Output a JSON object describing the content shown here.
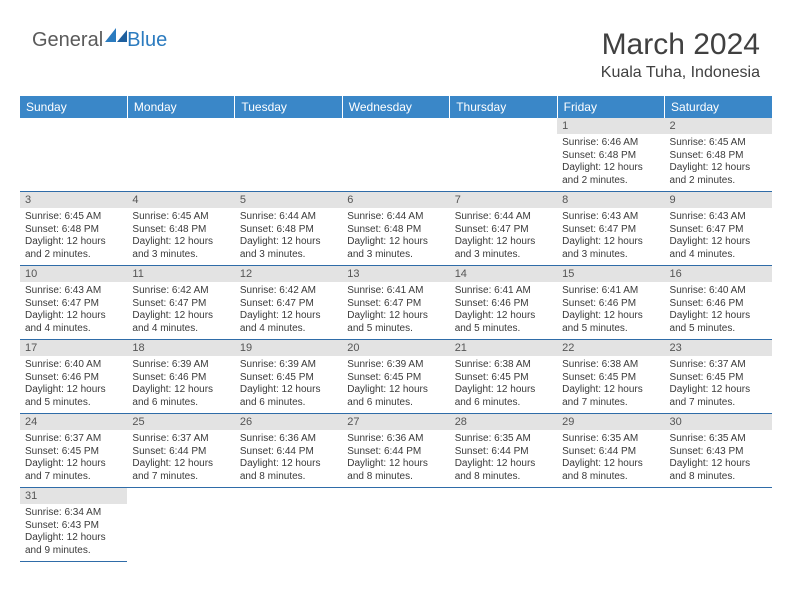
{
  "brand": {
    "part1": "General",
    "part2": "Blue"
  },
  "title": "March 2024",
  "location": "Kuala Tuha, Indonesia",
  "colors": {
    "header_bg": "#3a87c8",
    "header_text": "#ffffff",
    "daynum_bg": "#e3e3e3",
    "daynum_text": "#555555",
    "cell_border": "#2f6ca8",
    "body_text": "#3a3a3a",
    "brand_gray": "#5a5a5a",
    "brand_blue": "#2b7bbf"
  },
  "columns": [
    "Sunday",
    "Monday",
    "Tuesday",
    "Wednesday",
    "Thursday",
    "Friday",
    "Saturday"
  ],
  "weeks": [
    [
      null,
      null,
      null,
      null,
      null,
      {
        "n": "1",
        "sr": "6:46 AM",
        "ss": "6:48 PM",
        "dl": "12 hours and 2 minutes."
      },
      {
        "n": "2",
        "sr": "6:45 AM",
        "ss": "6:48 PM",
        "dl": "12 hours and 2 minutes."
      }
    ],
    [
      {
        "n": "3",
        "sr": "6:45 AM",
        "ss": "6:48 PM",
        "dl": "12 hours and 2 minutes."
      },
      {
        "n": "4",
        "sr": "6:45 AM",
        "ss": "6:48 PM",
        "dl": "12 hours and 3 minutes."
      },
      {
        "n": "5",
        "sr": "6:44 AM",
        "ss": "6:48 PM",
        "dl": "12 hours and 3 minutes."
      },
      {
        "n": "6",
        "sr": "6:44 AM",
        "ss": "6:48 PM",
        "dl": "12 hours and 3 minutes."
      },
      {
        "n": "7",
        "sr": "6:44 AM",
        "ss": "6:47 PM",
        "dl": "12 hours and 3 minutes."
      },
      {
        "n": "8",
        "sr": "6:43 AM",
        "ss": "6:47 PM",
        "dl": "12 hours and 3 minutes."
      },
      {
        "n": "9",
        "sr": "6:43 AM",
        "ss": "6:47 PM",
        "dl": "12 hours and 4 minutes."
      }
    ],
    [
      {
        "n": "10",
        "sr": "6:43 AM",
        "ss": "6:47 PM",
        "dl": "12 hours and 4 minutes."
      },
      {
        "n": "11",
        "sr": "6:42 AM",
        "ss": "6:47 PM",
        "dl": "12 hours and 4 minutes."
      },
      {
        "n": "12",
        "sr": "6:42 AM",
        "ss": "6:47 PM",
        "dl": "12 hours and 4 minutes."
      },
      {
        "n": "13",
        "sr": "6:41 AM",
        "ss": "6:47 PM",
        "dl": "12 hours and 5 minutes."
      },
      {
        "n": "14",
        "sr": "6:41 AM",
        "ss": "6:46 PM",
        "dl": "12 hours and 5 minutes."
      },
      {
        "n": "15",
        "sr": "6:41 AM",
        "ss": "6:46 PM",
        "dl": "12 hours and 5 minutes."
      },
      {
        "n": "16",
        "sr": "6:40 AM",
        "ss": "6:46 PM",
        "dl": "12 hours and 5 minutes."
      }
    ],
    [
      {
        "n": "17",
        "sr": "6:40 AM",
        "ss": "6:46 PM",
        "dl": "12 hours and 5 minutes."
      },
      {
        "n": "18",
        "sr": "6:39 AM",
        "ss": "6:46 PM",
        "dl": "12 hours and 6 minutes."
      },
      {
        "n": "19",
        "sr": "6:39 AM",
        "ss": "6:45 PM",
        "dl": "12 hours and 6 minutes."
      },
      {
        "n": "20",
        "sr": "6:39 AM",
        "ss": "6:45 PM",
        "dl": "12 hours and 6 minutes."
      },
      {
        "n": "21",
        "sr": "6:38 AM",
        "ss": "6:45 PM",
        "dl": "12 hours and 6 minutes."
      },
      {
        "n": "22",
        "sr": "6:38 AM",
        "ss": "6:45 PM",
        "dl": "12 hours and 7 minutes."
      },
      {
        "n": "23",
        "sr": "6:37 AM",
        "ss": "6:45 PM",
        "dl": "12 hours and 7 minutes."
      }
    ],
    [
      {
        "n": "24",
        "sr": "6:37 AM",
        "ss": "6:45 PM",
        "dl": "12 hours and 7 minutes."
      },
      {
        "n": "25",
        "sr": "6:37 AM",
        "ss": "6:44 PM",
        "dl": "12 hours and 7 minutes."
      },
      {
        "n": "26",
        "sr": "6:36 AM",
        "ss": "6:44 PM",
        "dl": "12 hours and 8 minutes."
      },
      {
        "n": "27",
        "sr": "6:36 AM",
        "ss": "6:44 PM",
        "dl": "12 hours and 8 minutes."
      },
      {
        "n": "28",
        "sr": "6:35 AM",
        "ss": "6:44 PM",
        "dl": "12 hours and 8 minutes."
      },
      {
        "n": "29",
        "sr": "6:35 AM",
        "ss": "6:44 PM",
        "dl": "12 hours and 8 minutes."
      },
      {
        "n": "30",
        "sr": "6:35 AM",
        "ss": "6:43 PM",
        "dl": "12 hours and 8 minutes."
      }
    ],
    [
      {
        "n": "31",
        "sr": "6:34 AM",
        "ss": "6:43 PM",
        "dl": "12 hours and 9 minutes."
      },
      null,
      null,
      null,
      null,
      null,
      null
    ]
  ],
  "labels": {
    "sunrise": "Sunrise:",
    "sunset": "Sunset:",
    "daylight": "Daylight:"
  }
}
